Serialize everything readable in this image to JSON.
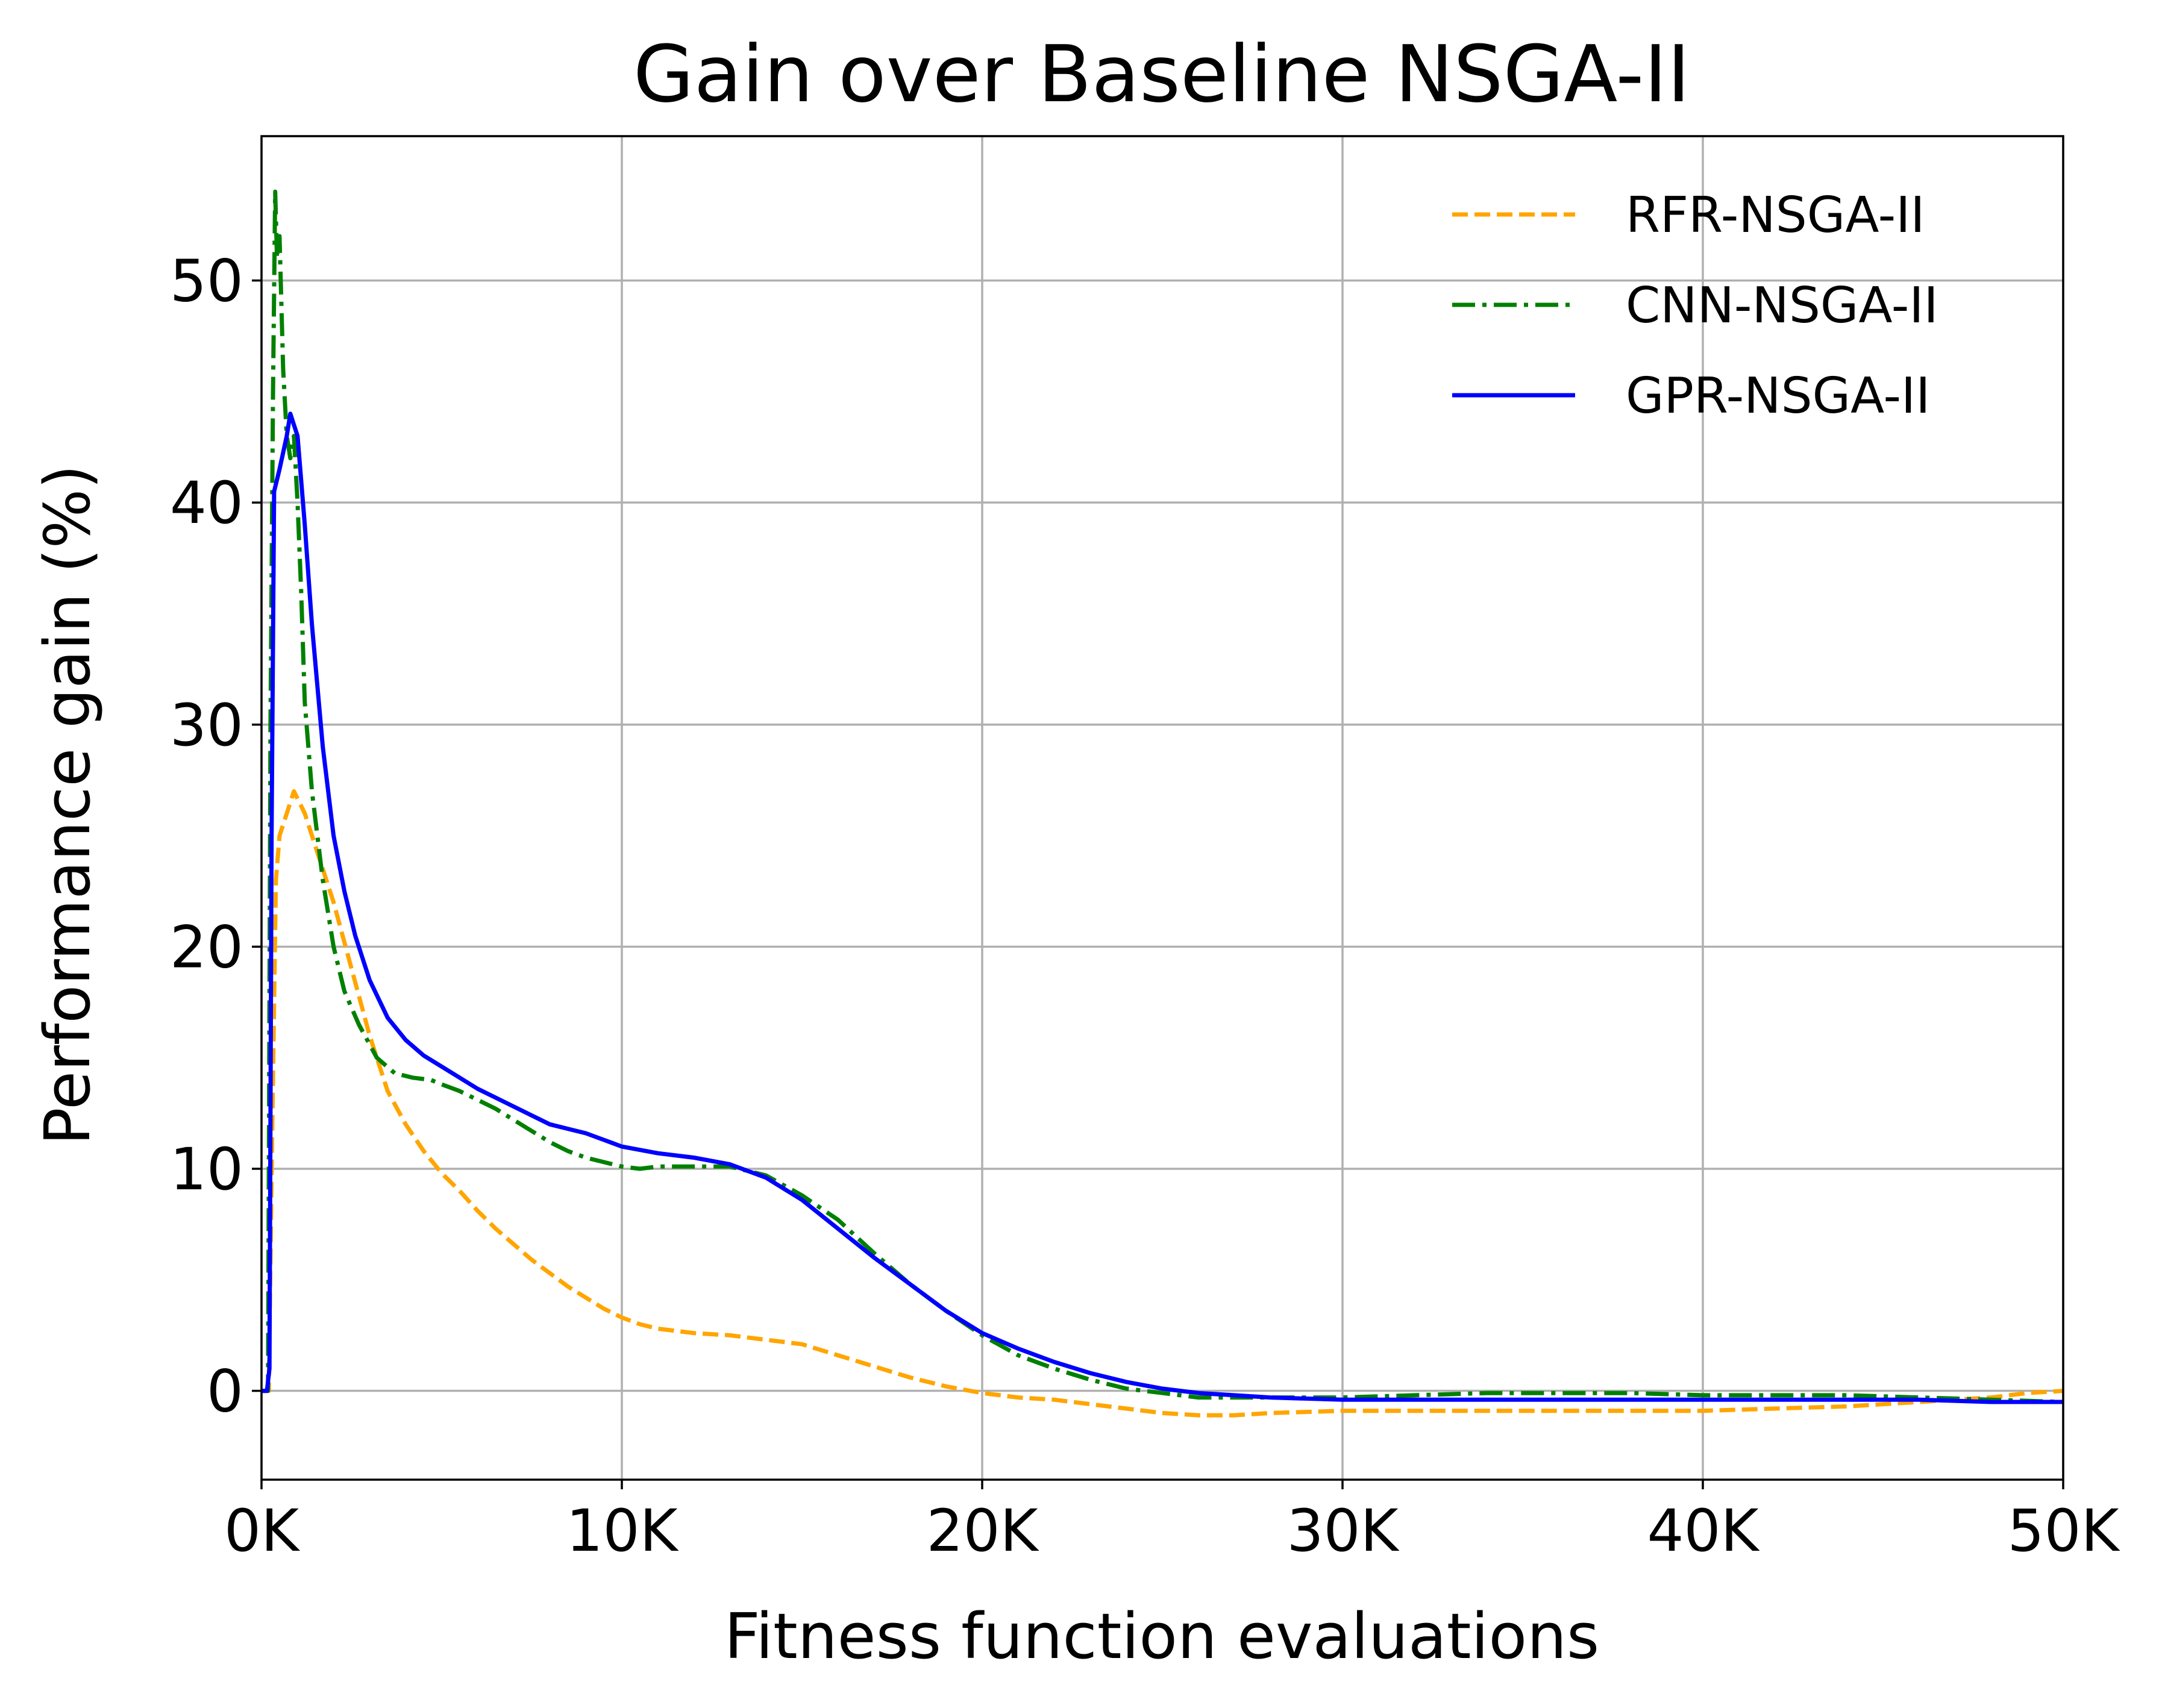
{
  "chart_data": {
    "type": "line",
    "title": "Gain over Baseline NSGA-II",
    "xlabel": "Fitness function evaluations",
    "ylabel": "Performance gain (%)",
    "xlim": [
      0,
      50000
    ],
    "ylim": [
      -4,
      56.5
    ],
    "grid": true,
    "legend_position": "top-right",
    "x_ticks": [
      {
        "value": 0,
        "label": "0K"
      },
      {
        "value": 10000,
        "label": "10K"
      },
      {
        "value": 20000,
        "label": "20K"
      },
      {
        "value": 30000,
        "label": "30K"
      },
      {
        "value": 40000,
        "label": "40K"
      },
      {
        "value": 50000,
        "label": "50K"
      }
    ],
    "y_ticks": [
      {
        "value": 0,
        "label": "0"
      },
      {
        "value": 10,
        "label": "10"
      },
      {
        "value": 20,
        "label": "20"
      },
      {
        "value": 30,
        "label": "30"
      },
      {
        "value": 40,
        "label": "40"
      },
      {
        "value": 50,
        "label": "50"
      }
    ],
    "series": [
      {
        "name": "RFR-NSGA-II",
        "color": "#ffa500",
        "dash": "dashed",
        "points": [
          [
            0,
            0
          ],
          [
            200,
            0
          ],
          [
            300,
            12
          ],
          [
            400,
            23
          ],
          [
            500,
            25
          ],
          [
            700,
            26
          ],
          [
            900,
            27
          ],
          [
            1200,
            26
          ],
          [
            1600,
            24
          ],
          [
            2000,
            22
          ],
          [
            2500,
            19
          ],
          [
            3000,
            16
          ],
          [
            3500,
            13.5
          ],
          [
            4000,
            12
          ],
          [
            4500,
            10.8
          ],
          [
            5000,
            9.8
          ],
          [
            5500,
            9
          ],
          [
            6000,
            8.1
          ],
          [
            6500,
            7.3
          ],
          [
            7000,
            6.6
          ],
          [
            7500,
            5.9
          ],
          [
            8000,
            5.3
          ],
          [
            8500,
            4.7
          ],
          [
            9000,
            4.2
          ],
          [
            9500,
            3.7
          ],
          [
            10000,
            3.3
          ],
          [
            10500,
            3
          ],
          [
            11000,
            2.8
          ],
          [
            12000,
            2.6
          ],
          [
            13000,
            2.5
          ],
          [
            14000,
            2.3
          ],
          [
            15000,
            2.1
          ],
          [
            16000,
            1.6
          ],
          [
            17000,
            1.1
          ],
          [
            18000,
            0.6
          ],
          [
            19000,
            0.2
          ],
          [
            20000,
            -0.1
          ],
          [
            21000,
            -0.3
          ],
          [
            22000,
            -0.4
          ],
          [
            23000,
            -0.6
          ],
          [
            24000,
            -0.8
          ],
          [
            25000,
            -1
          ],
          [
            26000,
            -1.1
          ],
          [
            27000,
            -1.1
          ],
          [
            28000,
            -1
          ],
          [
            30000,
            -0.9
          ],
          [
            32000,
            -0.9
          ],
          [
            34000,
            -0.9
          ],
          [
            36000,
            -0.9
          ],
          [
            38000,
            -0.9
          ],
          [
            40000,
            -0.9
          ],
          [
            42000,
            -0.8
          ],
          [
            44000,
            -0.7
          ],
          [
            46000,
            -0.5
          ],
          [
            48000,
            -0.3
          ],
          [
            49000,
            -0.1
          ],
          [
            50000,
            0
          ]
        ]
      },
      {
        "name": "CNN-NSGA-II",
        "color": "#008000",
        "dash": "dashdot",
        "points": [
          [
            0,
            0
          ],
          [
            180,
            0
          ],
          [
            250,
            30
          ],
          [
            320,
            45
          ],
          [
            380,
            54
          ],
          [
            430,
            51
          ],
          [
            500,
            52
          ],
          [
            600,
            46
          ],
          [
            700,
            43
          ],
          [
            800,
            42
          ],
          [
            900,
            43
          ],
          [
            1000,
            40
          ],
          [
            1100,
            36
          ],
          [
            1200,
            31
          ],
          [
            1400,
            27
          ],
          [
            1700,
            23
          ],
          [
            2000,
            20
          ],
          [
            2300,
            18
          ],
          [
            2700,
            16.5
          ],
          [
            3200,
            15
          ],
          [
            3700,
            14.3
          ],
          [
            4200,
            14.1
          ],
          [
            4700,
            14
          ],
          [
            5000,
            13.8
          ],
          [
            5500,
            13.5
          ],
          [
            6000,
            13.1
          ],
          [
            6500,
            12.7
          ],
          [
            7000,
            12.2
          ],
          [
            7500,
            11.7
          ],
          [
            8000,
            11.2
          ],
          [
            8500,
            10.8
          ],
          [
            9000,
            10.5
          ],
          [
            9500,
            10.3
          ],
          [
            10000,
            10.1
          ],
          [
            10500,
            10
          ],
          [
            11000,
            10.1
          ],
          [
            12000,
            10.1
          ],
          [
            13000,
            10.1
          ],
          [
            14000,
            9.7
          ],
          [
            15000,
            8.8
          ],
          [
            16000,
            7.7
          ],
          [
            17000,
            6.2
          ],
          [
            18000,
            4.8
          ],
          [
            19000,
            3.6
          ],
          [
            20000,
            2.5
          ],
          [
            21000,
            1.6
          ],
          [
            22000,
            1
          ],
          [
            23000,
            0.5
          ],
          [
            24000,
            0.1
          ],
          [
            25000,
            -0.1
          ],
          [
            26000,
            -0.3
          ],
          [
            28000,
            -0.3
          ],
          [
            30000,
            -0.3
          ],
          [
            32000,
            -0.2
          ],
          [
            34000,
            -0.1
          ],
          [
            36000,
            -0.1
          ],
          [
            38000,
            -0.1
          ],
          [
            40000,
            -0.2
          ],
          [
            42000,
            -0.2
          ],
          [
            44000,
            -0.2
          ],
          [
            46000,
            -0.3
          ],
          [
            48000,
            -0.4
          ],
          [
            50000,
            -0.5
          ]
        ]
      },
      {
        "name": "GPR-NSGA-II",
        "color": "#0000ff",
        "dash": "solid",
        "points": [
          [
            0,
            0
          ],
          [
            150,
            0
          ],
          [
            220,
            1
          ],
          [
            280,
            25
          ],
          [
            350,
            40.5
          ],
          [
            500,
            41.5
          ],
          [
            700,
            43
          ],
          [
            800,
            44
          ],
          [
            900,
            43.5
          ],
          [
            1000,
            43
          ],
          [
            1200,
            39
          ],
          [
            1400,
            34.5
          ],
          [
            1700,
            29
          ],
          [
            2000,
            25
          ],
          [
            2300,
            22.5
          ],
          [
            2600,
            20.5
          ],
          [
            3000,
            18.5
          ],
          [
            3500,
            16.8
          ],
          [
            4000,
            15.8
          ],
          [
            4500,
            15.1
          ],
          [
            5000,
            14.6
          ],
          [
            5500,
            14.1
          ],
          [
            6000,
            13.6
          ],
          [
            6500,
            13.2
          ],
          [
            7000,
            12.8
          ],
          [
            7500,
            12.4
          ],
          [
            8000,
            12
          ],
          [
            8500,
            11.8
          ],
          [
            9000,
            11.6
          ],
          [
            9500,
            11.3
          ],
          [
            10000,
            11
          ],
          [
            11000,
            10.7
          ],
          [
            12000,
            10.5
          ],
          [
            13000,
            10.2
          ],
          [
            14000,
            9.6
          ],
          [
            15000,
            8.6
          ],
          [
            16000,
            7.3
          ],
          [
            17000,
            6
          ],
          [
            18000,
            4.8
          ],
          [
            19000,
            3.6
          ],
          [
            20000,
            2.6
          ],
          [
            21000,
            1.9
          ],
          [
            22000,
            1.3
          ],
          [
            23000,
            0.8
          ],
          [
            24000,
            0.4
          ],
          [
            25000,
            0.1
          ],
          [
            26000,
            -0.1
          ],
          [
            27000,
            -0.2
          ],
          [
            28000,
            -0.3
          ],
          [
            30000,
            -0.4
          ],
          [
            32000,
            -0.4
          ],
          [
            34000,
            -0.4
          ],
          [
            36000,
            -0.4
          ],
          [
            38000,
            -0.4
          ],
          [
            40000,
            -0.4
          ],
          [
            42000,
            -0.4
          ],
          [
            44000,
            -0.4
          ],
          [
            46000,
            -0.4
          ],
          [
            48000,
            -0.5
          ],
          [
            50000,
            -0.5
          ]
        ]
      }
    ]
  }
}
